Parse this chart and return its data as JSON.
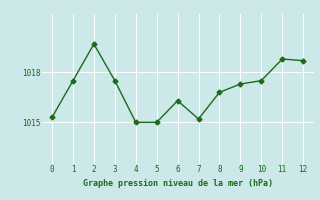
{
  "x": [
    0,
    1,
    2,
    3,
    4,
    5,
    6,
    7,
    8,
    9,
    10,
    11,
    12
  ],
  "y": [
    1015.3,
    1017.5,
    1019.7,
    1017.5,
    1015.0,
    1015.0,
    1016.3,
    1015.2,
    1016.8,
    1017.3,
    1017.5,
    1018.8,
    1018.7
  ],
  "line_color": "#1a6b1a",
  "marker": "D",
  "marker_size": 2.5,
  "bg_color": "#cce8e8",
  "grid_color": "#ffffff",
  "xlabel": "Graphe pression niveau de la mer (hPa)",
  "xlabel_color": "#1a6b1a",
  "tick_color": "#1a6b1a",
  "yticks": [
    1015,
    1018
  ],
  "ylim": [
    1012.5,
    1021.5
  ],
  "xlim": [
    -0.5,
    12.5
  ],
  "xticks": [
    0,
    1,
    2,
    3,
    4,
    5,
    6,
    7,
    8,
    9,
    10,
    11,
    12
  ]
}
